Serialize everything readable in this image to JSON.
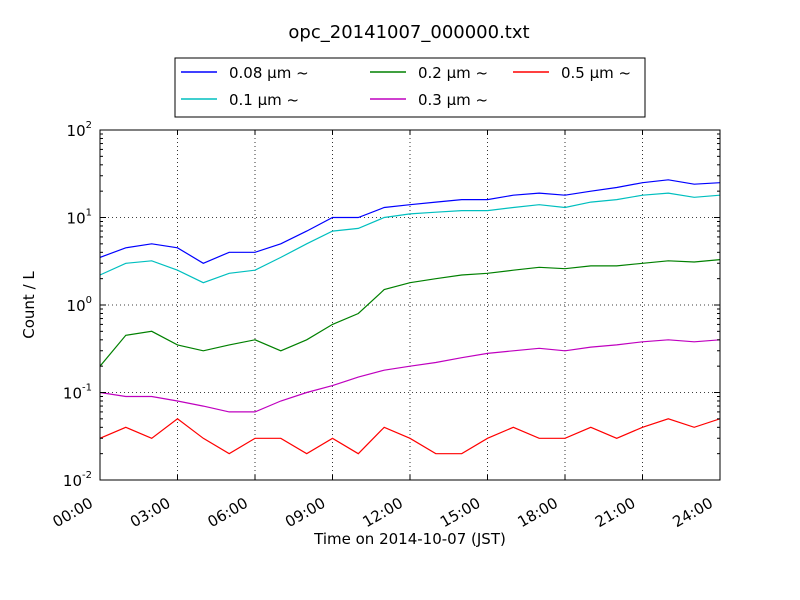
{
  "chart_data": {
    "type": "line",
    "title": "opc_20141007_000000.txt",
    "xlabel": "Time on 2014-10-07 (JST)",
    "ylabel": "Count / L",
    "xlim": [
      0,
      24
    ],
    "x_unit": "hour",
    "x_tick_labels": [
      "00:00",
      "03:00",
      "06:00",
      "09:00",
      "12:00",
      "15:00",
      "18:00",
      "21:00",
      "24:00"
    ],
    "yscale": "log",
    "ylim": [
      0.01,
      100
    ],
    "y_tick_labels": [
      {
        "base": "10",
        "exp": "-2"
      },
      {
        "base": "10",
        "exp": "-1"
      },
      {
        "base": "10",
        "exp": "0"
      },
      {
        "base": "10",
        "exp": "1"
      },
      {
        "base": "10",
        "exp": "2"
      }
    ],
    "grid": true,
    "legend": {
      "placement": "top-center",
      "columns": 3
    },
    "series": [
      {
        "name": "0.08 μm ~",
        "color": "#0000ff",
        "x": [
          0,
          1,
          2,
          3,
          4,
          5,
          6,
          7,
          8,
          9,
          10,
          11,
          12,
          13,
          14,
          15,
          16,
          17,
          18,
          19,
          20,
          21,
          22,
          23,
          24
        ],
        "y": [
          3.5,
          4.5,
          5,
          4.5,
          3,
          4,
          4,
          5,
          7,
          10,
          10,
          13,
          14,
          15,
          16,
          16,
          18,
          19,
          18,
          20,
          22,
          25,
          27,
          24,
          25
        ]
      },
      {
        "name": "0.1 μm ~",
        "color": "#00bfbf",
        "x": [
          0,
          1,
          2,
          3,
          4,
          5,
          6,
          7,
          8,
          9,
          10,
          11,
          12,
          13,
          14,
          15,
          16,
          17,
          18,
          19,
          20,
          21,
          22,
          23,
          24
        ],
        "y": [
          2.2,
          3,
          3.2,
          2.5,
          1.8,
          2.3,
          2.5,
          3.5,
          5,
          7,
          7.5,
          10,
          11,
          11.5,
          12,
          12,
          13,
          14,
          13,
          15,
          16,
          18,
          19,
          17,
          18
        ]
      },
      {
        "name": "0.2 μm ~",
        "color": "#008000",
        "x": [
          0,
          1,
          2,
          3,
          4,
          5,
          6,
          7,
          8,
          9,
          10,
          11,
          12,
          13,
          14,
          15,
          16,
          17,
          18,
          19,
          20,
          21,
          22,
          23,
          24
        ],
        "y": [
          0.2,
          0.45,
          0.5,
          0.35,
          0.3,
          0.35,
          0.4,
          0.3,
          0.4,
          0.6,
          0.8,
          1.5,
          1.8,
          2,
          2.2,
          2.3,
          2.5,
          2.7,
          2.6,
          2.8,
          2.8,
          3,
          3.2,
          3.1,
          3.3
        ]
      },
      {
        "name": "0.3 μm ~",
        "color": "#bf00bf",
        "x": [
          0,
          1,
          2,
          3,
          4,
          5,
          6,
          7,
          8,
          9,
          10,
          11,
          12,
          13,
          14,
          15,
          16,
          17,
          18,
          19,
          20,
          21,
          22,
          23,
          24
        ],
        "y": [
          0.1,
          0.09,
          0.09,
          0.08,
          0.07,
          0.06,
          0.06,
          0.08,
          0.1,
          0.12,
          0.15,
          0.18,
          0.2,
          0.22,
          0.25,
          0.28,
          0.3,
          0.32,
          0.3,
          0.33,
          0.35,
          0.38,
          0.4,
          0.38,
          0.4
        ]
      },
      {
        "name": "0.5 μm ~",
        "color": "#ff0000",
        "x": [
          0,
          1,
          2,
          3,
          4,
          5,
          6,
          7,
          8,
          9,
          10,
          11,
          12,
          13,
          14,
          15,
          16,
          17,
          18,
          19,
          20,
          21,
          22,
          23,
          24
        ],
        "y": [
          0.03,
          0.04,
          0.03,
          0.05,
          0.03,
          0.02,
          0.03,
          0.03,
          0.02,
          0.03,
          0.02,
          0.04,
          0.03,
          0.02,
          0.02,
          0.03,
          0.04,
          0.03,
          0.03,
          0.04,
          0.03,
          0.04,
          0.05,
          0.04,
          0.05
        ]
      }
    ]
  }
}
